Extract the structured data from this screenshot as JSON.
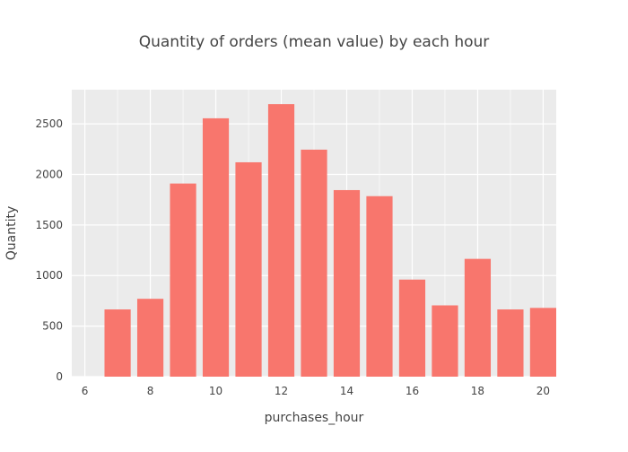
{
  "chart_data": {
    "type": "bar",
    "title": "Quantity of orders (mean value) by each hour",
    "xlabel": "purchases_hour",
    "ylabel": "Quantity",
    "x": [
      7,
      8,
      9,
      10,
      11,
      12,
      13,
      14,
      15,
      16,
      17,
      18,
      19,
      20
    ],
    "values": [
      665,
      770,
      1910,
      2555,
      2120,
      2695,
      2245,
      1845,
      1785,
      960,
      705,
      1165,
      665,
      680
    ],
    "xlim": [
      5.6,
      20.4
    ],
    "ylim": [
      0,
      2838
    ],
    "xticks": [
      6,
      8,
      10,
      12,
      14,
      16,
      18,
      20
    ],
    "yticks": [
      0,
      500,
      1000,
      1500,
      2000,
      2500
    ],
    "grid": true,
    "legend": "none",
    "bar_color": "#F8766D",
    "plot_background": "#EBEBEB",
    "grid_color": "#FFFFFF"
  }
}
